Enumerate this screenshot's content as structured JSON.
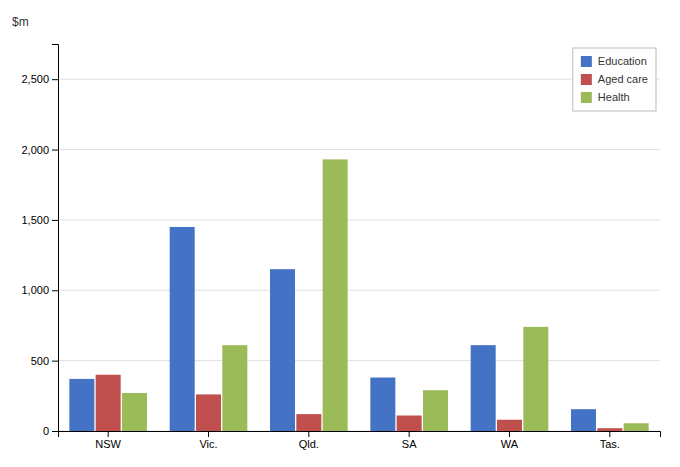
{
  "chart_data": {
    "type": "bar",
    "ylabel": "$m",
    "categories": [
      "NSW",
      "Vic.",
      "Qld.",
      "SA",
      "WA",
      "Tas."
    ],
    "series": [
      {
        "name": "Education",
        "color": "#4472C4",
        "values": [
          370,
          1450,
          1150,
          380,
          610,
          155
        ]
      },
      {
        "name": "Aged care",
        "color": "#C0504D",
        "values": [
          400,
          260,
          120,
          110,
          80,
          20
        ]
      },
      {
        "name": "Health",
        "color": "#9BBB59",
        "values": [
          270,
          610,
          1930,
          290,
          740,
          55
        ]
      }
    ],
    "ylim": [
      0,
      2750
    ],
    "yticks": [
      0,
      500,
      {
        "value": 1000,
        "label": "1,000"
      },
      {
        "value": 1500,
        "label": "1,500"
      },
      {
        "value": 2000,
        "label": "2,000"
      },
      {
        "value": 2500,
        "label": "2,500"
      }
    ],
    "grid": true,
    "legend": "upper right"
  }
}
